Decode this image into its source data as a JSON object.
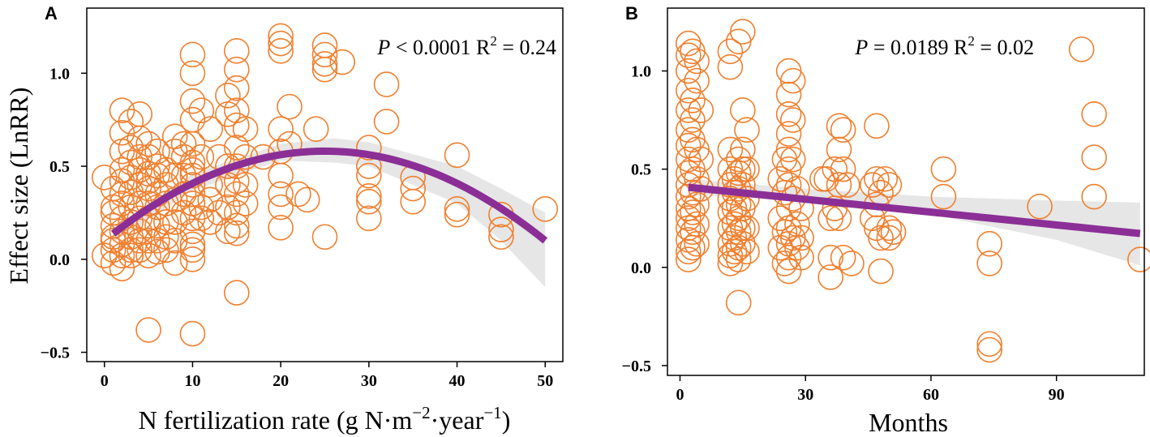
{
  "chart_data": [
    {
      "type": "scatter",
      "panel": "A",
      "xlabel": "N fertilization rate (g N·m",
      "xlabel_exp1": "−2",
      "xlabel_mid": "·year",
      "xlabel_exp2": "−1",
      "xlabel_end": ")",
      "ylabel": "Effect size (LnRR)",
      "xlim": [
        -2,
        52
      ],
      "ylim": [
        -0.55,
        1.35
      ],
      "xticks": [
        0,
        10,
        20,
        30,
        40,
        50
      ],
      "xtick_labels": [
        "0",
        "10",
        "20",
        "30",
        "40",
        "50"
      ],
      "yticks": [
        -0.5,
        0.0,
        0.5,
        1.0
      ],
      "ytick_labels": [
        "−0.5",
        "0.0",
        "0.5",
        "1.0"
      ],
      "stat_p_symbol": "P",
      "stat_p_text": "< 0.0001",
      "stat_r_text": "R",
      "stat_r_sup": "2",
      "stat_r_value": "= 0.24",
      "fit": {
        "type": "quadratic",
        "a": 0.1,
        "b": 0.0385,
        "c": -0.00077,
        "x_range": [
          1,
          50
        ]
      },
      "band": {
        "upper": [
          [
            1,
            0.16
          ],
          [
            10,
            0.46
          ],
          [
            20,
            0.62
          ],
          [
            26,
            0.65
          ],
          [
            30,
            0.63
          ],
          [
            40,
            0.5
          ],
          [
            45,
            0.38
          ],
          [
            50,
            0.25
          ]
        ],
        "lower": [
          [
            1,
            0.09
          ],
          [
            10,
            0.37
          ],
          [
            20,
            0.53
          ],
          [
            26,
            0.52
          ],
          [
            30,
            0.5
          ],
          [
            40,
            0.3
          ],
          [
            45,
            0.1
          ],
          [
            50,
            -0.15
          ]
        ]
      },
      "points": [
        [
          0,
          0.02
        ],
        [
          0,
          0.44
        ],
        [
          1,
          0.38
        ],
        [
          1,
          0.12
        ],
        [
          1,
          0.05
        ],
        [
          1,
          -0.02
        ],
        [
          1,
          0.25
        ],
        [
          1,
          0.28
        ],
        [
          1,
          0.18
        ],
        [
          1,
          0.1
        ],
        [
          2,
          0.8
        ],
        [
          2,
          0.68
        ],
        [
          2,
          0.58
        ],
        [
          2,
          0.42
        ],
        [
          2,
          0.3
        ],
        [
          2,
          0.22
        ],
        [
          2,
          0.15
        ],
        [
          2,
          0.08
        ],
        [
          2,
          0.02
        ],
        [
          2,
          -0.05
        ],
        [
          2,
          0.35
        ],
        [
          2,
          0.48
        ],
        [
          3,
          0.05
        ],
        [
          3,
          0.12
        ],
        [
          3,
          0.2
        ],
        [
          3,
          0.28
        ],
        [
          3,
          0.36
        ],
        [
          3,
          0.44
        ],
        [
          3,
          0.52
        ],
        [
          3,
          0.02
        ],
        [
          3,
          0.74
        ],
        [
          3,
          0.6
        ],
        [
          4,
          0.15
        ],
        [
          4,
          0.22
        ],
        [
          4,
          0.3
        ],
        [
          4,
          0.4
        ],
        [
          4,
          0.48
        ],
        [
          4,
          0.55
        ],
        [
          4,
          0.05
        ],
        [
          4,
          0.1
        ],
        [
          4,
          0.78
        ],
        [
          4,
          0.65
        ],
        [
          5,
          0.22
        ],
        [
          5,
          0.3
        ],
        [
          5,
          0.38
        ],
        [
          5,
          0.46
        ],
        [
          5,
          0.55
        ],
        [
          5,
          0.62
        ],
        [
          5,
          0.1
        ],
        [
          5,
          0.02
        ],
        [
          5,
          -0.38
        ],
        [
          5,
          0.18
        ],
        [
          5,
          0.42
        ],
        [
          6,
          0.28
        ],
        [
          6,
          0.35
        ],
        [
          6,
          0.45
        ],
        [
          6,
          0.5
        ],
        [
          6,
          0.18
        ],
        [
          6,
          0.1
        ],
        [
          6,
          0.04
        ],
        [
          6,
          0.58
        ],
        [
          7,
          0.3
        ],
        [
          7,
          0.4
        ],
        [
          7,
          0.48
        ],
        [
          7,
          0.2
        ],
        [
          7,
          0.12
        ],
        [
          7,
          0.05
        ],
        [
          8,
          0.32
        ],
        [
          8,
          0.45
        ],
        [
          8,
          0.58
        ],
        [
          8,
          0.66
        ],
        [
          8,
          0.2
        ],
        [
          8,
          0.1
        ],
        [
          8,
          -0.02
        ],
        [
          9,
          0.45
        ],
        [
          9,
          0.62
        ],
        [
          9,
          0.35
        ],
        [
          9,
          0.25
        ],
        [
          9,
          0.55
        ],
        [
          10,
          1.1
        ],
        [
          10,
          1.0
        ],
        [
          10,
          0.85
        ],
        [
          10,
          0.75
        ],
        [
          10,
          0.62
        ],
        [
          10,
          0.52
        ],
        [
          10,
          0.45
        ],
        [
          10,
          0.4
        ],
        [
          10,
          0.3
        ],
        [
          10,
          0.22
        ],
        [
          10,
          0.15
        ],
        [
          10,
          0.05
        ],
        [
          10,
          0.0
        ],
        [
          10,
          -0.4
        ],
        [
          10,
          0.08
        ],
        [
          10,
          0.48
        ],
        [
          10,
          0.35
        ],
        [
          11,
          0.28
        ],
        [
          11,
          0.22
        ],
        [
          11,
          0.55
        ],
        [
          11,
          0.8
        ],
        [
          12,
          0.4
        ],
        [
          12,
          0.32
        ],
        [
          12,
          0.2
        ],
        [
          12,
          0.7
        ],
        [
          13,
          0.55
        ],
        [
          13,
          0.25
        ],
        [
          14,
          0.88
        ],
        [
          14,
          0.78
        ],
        [
          14,
          0.5
        ],
        [
          14,
          0.4
        ],
        [
          14,
          0.28
        ],
        [
          14,
          0.15
        ],
        [
          15,
          1.12
        ],
        [
          15,
          1.02
        ],
        [
          15,
          0.92
        ],
        [
          15,
          0.8
        ],
        [
          15,
          0.72
        ],
        [
          15,
          0.6
        ],
        [
          15,
          0.5
        ],
        [
          15,
          0.42
        ],
        [
          15,
          0.35
        ],
        [
          15,
          0.25
        ],
        [
          15,
          0.18
        ],
        [
          15,
          0.14
        ],
        [
          15,
          -0.18
        ],
        [
          16,
          0.7
        ],
        [
          16,
          0.55
        ],
        [
          16,
          0.4
        ],
        [
          16,
          0.3
        ],
        [
          18,
          0.55
        ],
        [
          20,
          1.2
        ],
        [
          20,
          1.16
        ],
        [
          20,
          1.12
        ],
        [
          20,
          0.7
        ],
        [
          20,
          0.58
        ],
        [
          20,
          0.45
        ],
        [
          20,
          0.35
        ],
        [
          20,
          0.28
        ],
        [
          20,
          0.17
        ],
        [
          21,
          0.82
        ],
        [
          21,
          0.62
        ],
        [
          22,
          0.35
        ],
        [
          23,
          0.32
        ],
        [
          24,
          0.7
        ],
        [
          25,
          1.15
        ],
        [
          25,
          1.1
        ],
        [
          25,
          1.05
        ],
        [
          25,
          1.02
        ],
        [
          25,
          0.12
        ],
        [
          27,
          1.06
        ],
        [
          30,
          0.6
        ],
        [
          30,
          0.5
        ],
        [
          30,
          0.45
        ],
        [
          30,
          0.34
        ],
        [
          30,
          0.31
        ],
        [
          30,
          0.22
        ],
        [
          32,
          0.94
        ],
        [
          32,
          0.74
        ],
        [
          35,
          0.44
        ],
        [
          35,
          0.38
        ],
        [
          35,
          0.31
        ],
        [
          40,
          0.56
        ],
        [
          40,
          0.27
        ],
        [
          40,
          0.24
        ],
        [
          45,
          0.24
        ],
        [
          45,
          0.16
        ],
        [
          45,
          0.12
        ],
        [
          50,
          0.27
        ]
      ]
    },
    {
      "type": "scatter",
      "panel": "B",
      "xlabel": "Months",
      "ylabel": "",
      "xlim": [
        -3,
        111
      ],
      "ylim": [
        -0.55,
        1.32
      ],
      "xticks": [
        0,
        30,
        60,
        90
      ],
      "xtick_labels": [
        "0",
        "30",
        "60",
        "90"
      ],
      "yticks": [
        -0.5,
        0.0,
        0.5,
        1.0
      ],
      "ytick_labels": [
        "−0.5",
        "0.0",
        "0.5",
        "1.0"
      ],
      "stat_p_symbol": "P",
      "stat_p_text": "= 0.0189",
      "stat_r_text": "R",
      "stat_r_sup": "2",
      "stat_r_value": "= 0.02",
      "fit": {
        "type": "linear",
        "a": 0.412,
        "b": -0.00218,
        "x_range": [
          2,
          110
        ]
      },
      "band": {
        "upper": [
          [
            2,
            0.45
          ],
          [
            30,
            0.4
          ],
          [
            60,
            0.36
          ],
          [
            90,
            0.34
          ],
          [
            110,
            0.33
          ]
        ],
        "lower": [
          [
            2,
            0.37
          ],
          [
            30,
            0.34
          ],
          [
            60,
            0.27
          ],
          [
            90,
            0.14
          ],
          [
            110,
            0.01
          ]
        ]
      },
      "points": [
        [
          2,
          1.14
        ],
        [
          2,
          1.08
        ],
        [
          2,
          1.0
        ],
        [
          2,
          0.9
        ],
        [
          2,
          0.8
        ],
        [
          2,
          0.7
        ],
        [
          2,
          0.62
        ],
        [
          2,
          0.55
        ],
        [
          2,
          0.48
        ],
        [
          2,
          0.42
        ],
        [
          2,
          0.36
        ],
        [
          2,
          0.3
        ],
        [
          2,
          0.25
        ],
        [
          2,
          0.2
        ],
        [
          2,
          0.14
        ],
        [
          2,
          0.08
        ],
        [
          2,
          0.04
        ],
        [
          3,
          1.1
        ],
        [
          3,
          0.85
        ],
        [
          3,
          0.75
        ],
        [
          3,
          0.65
        ],
        [
          3,
          0.5
        ],
        [
          3,
          0.38
        ],
        [
          3,
          0.28
        ],
        [
          3,
          0.18
        ],
        [
          3,
          0.1
        ],
        [
          4,
          1.05
        ],
        [
          4,
          0.95
        ],
        [
          4,
          0.6
        ],
        [
          4,
          0.45
        ],
        [
          4,
          0.32
        ],
        [
          4,
          0.22
        ],
        [
          4,
          0.12
        ],
        [
          5,
          0.8
        ],
        [
          5,
          0.55
        ],
        [
          5,
          0.4
        ],
        [
          12,
          1.1
        ],
        [
          12,
          1.02
        ],
        [
          12,
          0.6
        ],
        [
          12,
          0.5
        ],
        [
          12,
          0.42
        ],
        [
          12,
          0.35
        ],
        [
          12,
          0.28
        ],
        [
          12,
          0.2
        ],
        [
          12,
          0.12
        ],
        [
          12,
          0.06
        ],
        [
          12,
          0.02
        ],
        [
          13,
          0.45
        ],
        [
          13,
          0.38
        ],
        [
          13,
          0.3
        ],
        [
          13,
          0.22
        ],
        [
          13,
          0.15
        ],
        [
          13,
          0.08
        ],
        [
          14,
          1.15
        ],
        [
          14,
          0.55
        ],
        [
          14,
          0.48
        ],
        [
          14,
          0.4
        ],
        [
          14,
          0.32
        ],
        [
          14,
          0.25
        ],
        [
          14,
          0.18
        ],
        [
          14,
          0.1
        ],
        [
          14,
          0.04
        ],
        [
          14,
          -0.18
        ],
        [
          15,
          1.2
        ],
        [
          15,
          0.8
        ],
        [
          15,
          0.6
        ],
        [
          15,
          0.5
        ],
        [
          15,
          0.42
        ],
        [
          15,
          0.3
        ],
        [
          15,
          0.2
        ],
        [
          15,
          0.12
        ],
        [
          16,
          0.7
        ],
        [
          16,
          0.5
        ],
        [
          16,
          0.35
        ],
        [
          16,
          0.2
        ],
        [
          16,
          0.08
        ],
        [
          24,
          0.45
        ],
        [
          24,
          0.25
        ],
        [
          24,
          0.1
        ],
        [
          25,
          0.55
        ],
        [
          25,
          0.38
        ],
        [
          25,
          0.18
        ],
        [
          25,
          0.02
        ],
        [
          26,
          1.0
        ],
        [
          26,
          0.88
        ],
        [
          26,
          0.78
        ],
        [
          26,
          0.68
        ],
        [
          26,
          0.6
        ],
        [
          26,
          0.5
        ],
        [
          26,
          0.42
        ],
        [
          26,
          0.3
        ],
        [
          26,
          0.2
        ],
        [
          26,
          0.12
        ],
        [
          26,
          0.05
        ],
        [
          26,
          -0.02
        ],
        [
          27,
          0.95
        ],
        [
          27,
          0.75
        ],
        [
          27,
          0.55
        ],
        [
          27,
          0.35
        ],
        [
          27,
          0.15
        ],
        [
          28,
          0.4
        ],
        [
          28,
          0.22
        ],
        [
          28,
          0.1
        ],
        [
          29,
          0.3
        ],
        [
          29,
          0.15
        ],
        [
          29,
          0.05
        ],
        [
          34,
          0.45
        ],
        [
          35,
          0.45
        ],
        [
          36,
          0.25
        ],
        [
          36,
          0.05
        ],
        [
          36,
          -0.05
        ],
        [
          37,
          0.5
        ],
        [
          37,
          0.3
        ],
        [
          38,
          0.72
        ],
        [
          38,
          0.6
        ],
        [
          38,
          0.42
        ],
        [
          38,
          0.25
        ],
        [
          39,
          0.7
        ],
        [
          39,
          0.5
        ],
        [
          39,
          0.05
        ],
        [
          40,
          0.42
        ],
        [
          41,
          0.02
        ],
        [
          46,
          0.42
        ],
        [
          46,
          0.25
        ],
        [
          47,
          0.72
        ],
        [
          47,
          0.45
        ],
        [
          47,
          0.32
        ],
        [
          47,
          0.2
        ],
        [
          48,
          0.38
        ],
        [
          48,
          0.15
        ],
        [
          48,
          -0.02
        ],
        [
          49,
          0.45
        ],
        [
          50,
          0.42
        ],
        [
          50,
          0.2
        ],
        [
          50,
          0.15
        ],
        [
          51,
          0.18
        ],
        [
          63,
          0.5
        ],
        [
          63,
          0.36
        ],
        [
          74,
          0.12
        ],
        [
          74,
          0.02
        ],
        [
          74,
          -0.39
        ],
        [
          74,
          -0.42
        ],
        [
          86,
          0.31
        ],
        [
          96,
          1.11
        ],
        [
          99,
          0.78
        ],
        [
          99,
          0.56
        ],
        [
          99,
          0.36
        ],
        [
          110,
          0.04
        ]
      ]
    }
  ]
}
